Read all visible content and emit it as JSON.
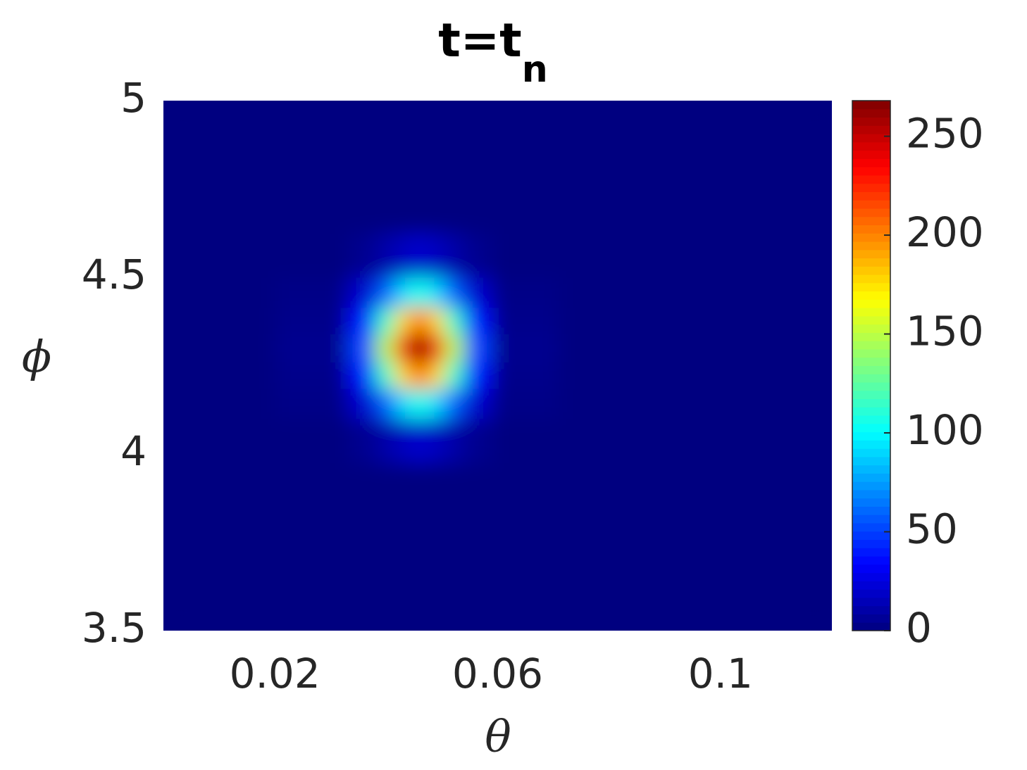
{
  "chart_data": {
    "type": "heatmap",
    "title": "t=t",
    "title_subscript": "n",
    "x_label": "θ",
    "y_label": "ϕ",
    "colormap": "jet",
    "x": [
      0.01,
      0.03,
      0.036,
      0.04,
      0.043,
      0.046,
      0.049,
      0.052,
      0.056,
      0.062,
      0.08,
      0.11
    ],
    "y": [
      3.6,
      3.9,
      4.05,
      4.15,
      4.22,
      4.3,
      4.38,
      4.45,
      4.55,
      4.7,
      4.9
    ],
    "values": [
      [
        0,
        0,
        0,
        0,
        0,
        0,
        0,
        0,
        0,
        0,
        0,
        0
      ],
      [
        0,
        0,
        0,
        0,
        0,
        0,
        0,
        0,
        0,
        0,
        0,
        0
      ],
      [
        0,
        0,
        4,
        11,
        17,
        20,
        17,
        11,
        4,
        0,
        0,
        0
      ],
      [
        0,
        2,
        20,
        58,
        91,
        106,
        91,
        58,
        20,
        2,
        0,
        0
      ],
      [
        0,
        3,
        39,
        114,
        177,
        206,
        177,
        114,
        39,
        3,
        0,
        0
      ],
      [
        0,
        4,
        51,
        148,
        231,
        268,
        231,
        148,
        51,
        4,
        0,
        0
      ],
      [
        0,
        3,
        39,
        114,
        177,
        206,
        177,
        114,
        39,
        3,
        0,
        0
      ],
      [
        0,
        2,
        20,
        58,
        91,
        106,
        91,
        58,
        20,
        2,
        0,
        0
      ],
      [
        0,
        0,
        4,
        11,
        17,
        20,
        17,
        11,
        4,
        0,
        0,
        0
      ],
      [
        0,
        0,
        0,
        0,
        0,
        0,
        0,
        0,
        0,
        0,
        0,
        0
      ],
      [
        0,
        0,
        0,
        0,
        0,
        0,
        0,
        0,
        0,
        0,
        0,
        0
      ]
    ],
    "xlim": [
      0,
      0.12
    ],
    "xticks": [
      0.02,
      0.06,
      0.1
    ],
    "ylim": [
      3.5,
      5
    ],
    "yticks": [
      3.5,
      4,
      4.5,
      5
    ],
    "clim": [
      0,
      268
    ],
    "cticks": [
      0,
      50,
      100,
      150,
      200,
      250
    ]
  }
}
